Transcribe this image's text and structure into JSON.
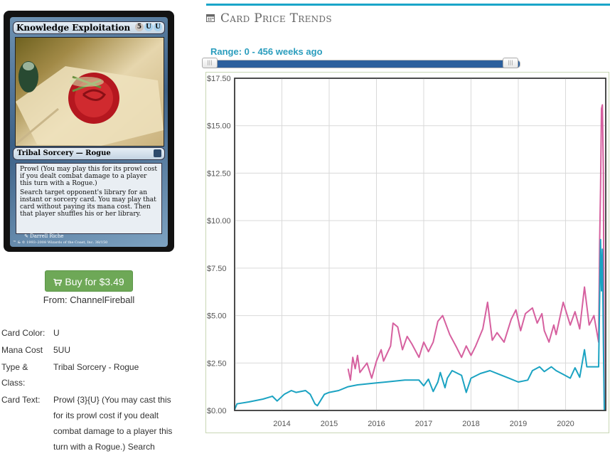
{
  "card": {
    "name": "Knowledge Exploitation",
    "mana_symbols": [
      "5",
      "U",
      "U"
    ],
    "type_line": "Tribal Sorcery — Rogue",
    "rules_text": [
      "Prowl (You may play this for its prowl cost if you dealt combat damage to a player this turn with a Rogue.)",
      "Search target opponent's library for an instant or sorcery card. You may play that card without paying its mana cost. Then that player shuffles his or her library."
    ],
    "prowl_cost_symbols": [
      "3",
      "U"
    ],
    "artist": "Darrell Riche",
    "copyright": "™ & © 1993–2008 Wizards of the Coast, Inc. 38/150"
  },
  "buy": {
    "label": "Buy for $3.49",
    "from": "From: ChannelFireball"
  },
  "details": [
    {
      "label": "Card Color:",
      "value": "U"
    },
    {
      "label": "Mana Cost",
      "value": "5UU"
    },
    {
      "label": "Type & Class:",
      "value": "Tribal Sorcery - Rogue"
    },
    {
      "label": "Card Text:",
      "value": "Prowl {3}{U} (You may cast this for its prowl cost if you dealt combat damage to a player this turn with a Rogue.) Search"
    }
  ],
  "trends": {
    "title": "Card Price Trends",
    "range_label": "Range: 0 - 456 weeks ago",
    "slider": {
      "min_weeks": 0,
      "max_weeks": 456
    }
  },
  "colors": {
    "accent": "#1aa5c9",
    "buy_green": "#6ea857",
    "slider_blue": "#2c5f9d",
    "series_a": "#d6609f",
    "series_b": "#1ba3c2"
  },
  "chart_data": {
    "type": "line",
    "y_ticks": [
      "$0.00",
      "$2.50",
      "$5.00",
      "$7.50",
      "$10.00",
      "$12.50",
      "$15.00",
      "$17.50"
    ],
    "x_ticks": [
      "2014",
      "2015",
      "2016",
      "2017",
      "2018",
      "2019",
      "2020"
    ],
    "ylim": [
      0,
      17.5
    ],
    "xlim": [
      2013.0,
      2020.85
    ],
    "grid": true,
    "series": [
      {
        "color": "#d6609f",
        "points": [
          [
            2015.4,
            2.2
          ],
          [
            2015.45,
            1.6
          ],
          [
            2015.5,
            2.8
          ],
          [
            2015.55,
            2.2
          ],
          [
            2015.6,
            2.9
          ],
          [
            2015.65,
            2.0
          ],
          [
            2015.8,
            2.5
          ],
          [
            2015.9,
            1.7
          ],
          [
            2016.0,
            2.6
          ],
          [
            2016.1,
            3.2
          ],
          [
            2016.15,
            2.6
          ],
          [
            2016.3,
            3.4
          ],
          [
            2016.35,
            4.6
          ],
          [
            2016.45,
            4.4
          ],
          [
            2016.55,
            3.2
          ],
          [
            2016.65,
            3.9
          ],
          [
            2016.75,
            3.5
          ],
          [
            2016.9,
            2.8
          ],
          [
            2017.0,
            3.6
          ],
          [
            2017.1,
            3.1
          ],
          [
            2017.2,
            3.6
          ],
          [
            2017.3,
            4.7
          ],
          [
            2017.4,
            5.0
          ],
          [
            2017.55,
            4.0
          ],
          [
            2017.7,
            3.3
          ],
          [
            2017.8,
            2.8
          ],
          [
            2017.9,
            3.4
          ],
          [
            2018.0,
            2.9
          ],
          [
            2018.1,
            3.4
          ],
          [
            2018.25,
            4.3
          ],
          [
            2018.35,
            5.7
          ],
          [
            2018.45,
            3.7
          ],
          [
            2018.55,
            4.1
          ],
          [
            2018.7,
            3.6
          ],
          [
            2018.85,
            4.8
          ],
          [
            2018.95,
            5.3
          ],
          [
            2019.05,
            4.2
          ],
          [
            2019.15,
            5.1
          ],
          [
            2019.3,
            5.4
          ],
          [
            2019.4,
            4.6
          ],
          [
            2019.5,
            5.1
          ],
          [
            2019.55,
            4.2
          ],
          [
            2019.65,
            3.6
          ],
          [
            2019.75,
            4.5
          ],
          [
            2019.8,
            4.0
          ],
          [
            2019.95,
            5.7
          ],
          [
            2020.1,
            4.5
          ],
          [
            2020.2,
            5.2
          ],
          [
            2020.3,
            4.3
          ],
          [
            2020.4,
            6.5
          ],
          [
            2020.5,
            4.5
          ],
          [
            2020.6,
            5.0
          ],
          [
            2020.7,
            3.6
          ],
          [
            2020.72,
            8.8
          ],
          [
            2020.74,
            11.7
          ],
          [
            2020.76,
            15.9
          ],
          [
            2020.78,
            16.1
          ],
          [
            2020.8,
            12.5
          ],
          [
            2020.82,
            0.0
          ]
        ]
      },
      {
        "color": "#1ba3c2",
        "points": [
          [
            2013.0,
            0.05
          ],
          [
            2013.05,
            0.35
          ],
          [
            2013.3,
            0.45
          ],
          [
            2013.6,
            0.6
          ],
          [
            2013.8,
            0.75
          ],
          [
            2013.9,
            0.5
          ],
          [
            2014.05,
            0.85
          ],
          [
            2014.2,
            1.05
          ],
          [
            2014.3,
            0.95
          ],
          [
            2014.5,
            1.05
          ],
          [
            2014.6,
            0.85
          ],
          [
            2014.7,
            0.35
          ],
          [
            2014.75,
            0.25
          ],
          [
            2014.9,
            0.85
          ],
          [
            2015.0,
            0.95
          ],
          [
            2015.2,
            1.05
          ],
          [
            2015.4,
            1.25
          ],
          [
            2015.6,
            1.35
          ],
          [
            2015.8,
            1.4
          ],
          [
            2016.0,
            1.45
          ],
          [
            2016.2,
            1.5
          ],
          [
            2016.4,
            1.55
          ],
          [
            2016.6,
            1.6
          ],
          [
            2016.9,
            1.6
          ],
          [
            2017.0,
            1.3
          ],
          [
            2017.1,
            1.65
          ],
          [
            2017.2,
            1.0
          ],
          [
            2017.3,
            1.5
          ],
          [
            2017.35,
            2.0
          ],
          [
            2017.45,
            1.2
          ],
          [
            2017.5,
            1.7
          ],
          [
            2017.6,
            2.1
          ],
          [
            2017.8,
            1.85
          ],
          [
            2017.9,
            0.95
          ],
          [
            2018.0,
            1.7
          ],
          [
            2018.2,
            1.95
          ],
          [
            2018.4,
            2.1
          ],
          [
            2018.6,
            1.9
          ],
          [
            2018.8,
            1.7
          ],
          [
            2019.0,
            1.5
          ],
          [
            2019.2,
            1.6
          ],
          [
            2019.3,
            2.1
          ],
          [
            2019.45,
            2.3
          ],
          [
            2019.55,
            2.05
          ],
          [
            2019.7,
            2.3
          ],
          [
            2019.8,
            2.1
          ],
          [
            2019.95,
            1.9
          ],
          [
            2020.1,
            1.7
          ],
          [
            2020.2,
            2.25
          ],
          [
            2020.3,
            1.75
          ],
          [
            2020.4,
            3.2
          ],
          [
            2020.45,
            2.3
          ],
          [
            2020.6,
            2.3
          ],
          [
            2020.7,
            2.3
          ],
          [
            2020.72,
            5.8
          ],
          [
            2020.74,
            9.0
          ],
          [
            2020.76,
            6.3
          ],
          [
            2020.78,
            8.5
          ],
          [
            2020.8,
            3.5
          ],
          [
            2020.82,
            0.0
          ]
        ]
      }
    ]
  }
}
